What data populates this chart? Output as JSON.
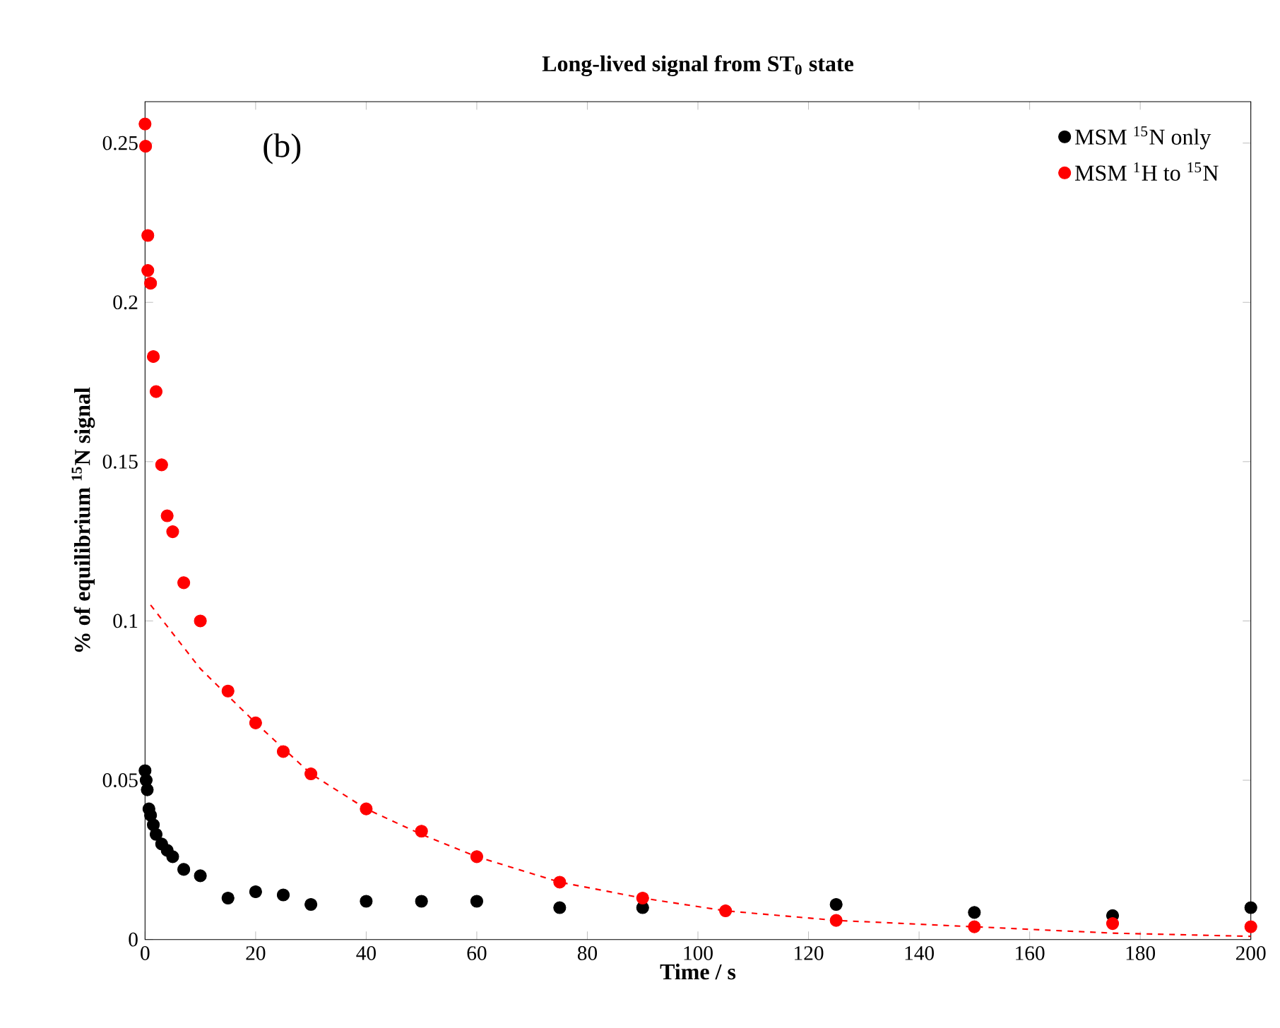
{
  "chart_data": {
    "type": "scatter",
    "title": "Long-lived signal from ST$_{0}$ state",
    "xlabel": "Time / s",
    "ylabel": "% of equilibrium $^{15}$N signal",
    "annotations": [
      "(b)"
    ],
    "series": [
      {
        "name": "MSM $^{15}$N only",
        "color": "#000000",
        "x": [
          0,
          0.2,
          0.4,
          0.7,
          1,
          1.5,
          2,
          3,
          4,
          5,
          7,
          10,
          15,
          20,
          25,
          30,
          40,
          50,
          60,
          75,
          90,
          125,
          150,
          175,
          200
        ],
        "values": [
          0.053,
          0.05,
          0.047,
          0.041,
          0.039,
          0.036,
          0.033,
          0.03,
          0.028,
          0.026,
          0.022,
          0.02,
          0.013,
          0.015,
          0.014,
          0.011,
          0.012,
          0.012,
          0.012,
          0.01,
          0.01,
          0.011,
          0.0085,
          0.0075,
          0.01
        ]
      },
      {
        "name": "MSM $^{1}$H to $^{15}$N",
        "color": "#ff0000",
        "x": [
          0,
          0.1,
          0.5,
          0.5,
          1,
          1.5,
          2,
          3,
          4,
          5,
          7,
          10,
          15,
          20,
          25,
          30,
          40,
          50,
          60,
          75,
          90,
          105,
          125,
          150,
          175,
          200
        ],
        "values": [
          0.256,
          0.249,
          0.221,
          0.21,
          0.206,
          0.183,
          0.172,
          0.149,
          0.133,
          0.128,
          0.112,
          0.1,
          0.078,
          0.068,
          0.059,
          0.052,
          0.041,
          0.034,
          0.026,
          0.018,
          0.013,
          0.009,
          0.006,
          0.004,
          0.005,
          0.004
        ]
      },
      {
        "type": "line",
        "color": "#ff0000",
        "line_style": "dashed",
        "marker": "none",
        "x": [
          1,
          10,
          20,
          30,
          40,
          50,
          60,
          75,
          90,
          105,
          125,
          150,
          175,
          200
        ],
        "values": [
          0.105,
          0.085,
          0.068,
          0.052,
          0.041,
          0.033,
          0.026,
          0.018,
          0.013,
          0.009,
          0.006,
          0.004,
          0.002,
          0.001
        ]
      }
    ],
    "xlim": [
      0,
      200
    ],
    "ylim": [
      0,
      0.263
    ],
    "xticks": [
      0,
      20,
      40,
      60,
      80,
      100,
      120,
      140,
      160,
      180,
      200
    ],
    "yticks": [
      0,
      0.05,
      0.1,
      0.15,
      0.2,
      0.25
    ],
    "marker": "circle",
    "legend": "top right",
    "grid": false
  }
}
